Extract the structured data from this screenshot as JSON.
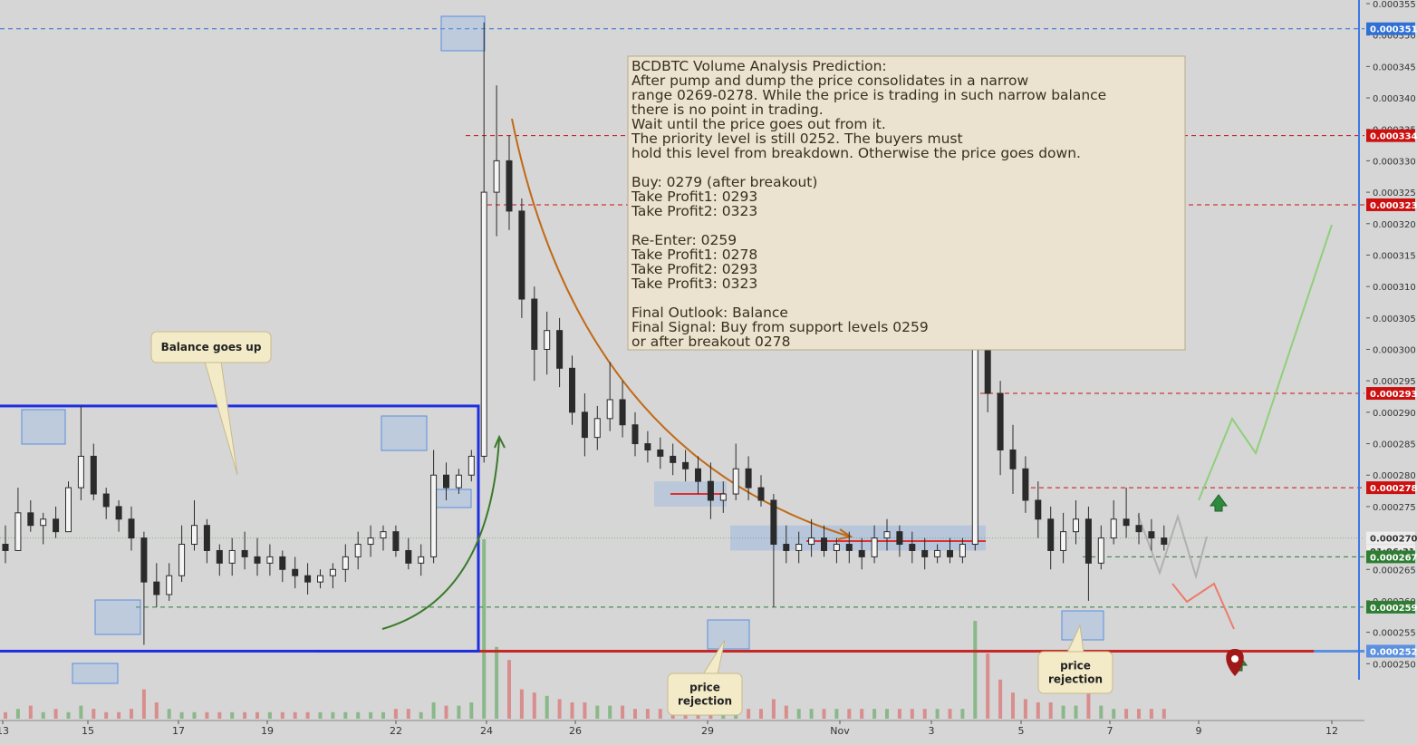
{
  "chart_data": {
    "type": "candlestick",
    "symbol": "BCDBTC",
    "ylim": [
      0.000245,
      0.000355
    ],
    "y_ticks": [
      "0.000250",
      "0.000255",
      "0.000260",
      "0.000265",
      "0.000270",
      "0.000275",
      "0.000280",
      "0.000285",
      "0.000290",
      "0.000295",
      "0.000300",
      "0.000305",
      "0.000310",
      "0.000315",
      "0.000320",
      "0.000325",
      "0.000330",
      "0.000335",
      "0.000340",
      "0.000345",
      "0.000350",
      "0.000355"
    ],
    "x_ticks": [
      "13",
      "15",
      "17",
      "19",
      "22",
      "24",
      "26",
      "29",
      "Nov",
      "3",
      "5",
      "7",
      "9",
      "12"
    ],
    "price_labels": [
      {
        "text": "0.000351",
        "value": 0.000351,
        "color": "#2f6fd6"
      },
      {
        "text": "0.000334",
        "value": 0.000334,
        "color": "#cc1010"
      },
      {
        "text": "0.000323",
        "value": 0.000323,
        "color": "#cc1010"
      },
      {
        "text": "0.000293",
        "value": 0.000293,
        "color": "#cc1010"
      },
      {
        "text": "0.000278",
        "value": 0.000278,
        "color": "#cc1010"
      },
      {
        "text": "0.000270",
        "value": 0.00027,
        "color": "#ffffff"
      },
      {
        "text": "01:06:31",
        "value": 0.0002679,
        "color": "#ffffff"
      },
      {
        "text": "0.000267",
        "value": 0.000267,
        "color": "#2e7d32"
      },
      {
        "text": "0.000259",
        "value": 0.000259,
        "color": "#2e7d32"
      },
      {
        "text": "0.000252",
        "value": 0.000252,
        "color": "#5b8fe0"
      }
    ],
    "levels": [
      {
        "value": 0.000351,
        "color": "#2f6fd6",
        "style": "dashed"
      },
      {
        "value": 0.000334,
        "color": "#cc1010",
        "style": "dashed"
      },
      {
        "value": 0.000323,
        "color": "#cc1010",
        "style": "dashed"
      },
      {
        "value": 0.000293,
        "color": "#cc1010",
        "style": "dashed"
      },
      {
        "value": 0.000278,
        "color": "#cc1010",
        "style": "dashed"
      },
      {
        "value": 0.000267,
        "color": "#2e7d32",
        "style": "dashed"
      },
      {
        "value": 0.000259,
        "color": "#2e7d32",
        "style": "dashed"
      },
      {
        "value": 0.000252,
        "color": "#c62828",
        "style": "solid"
      }
    ],
    "balance_range": [
      0.000252,
      0.000291
    ],
    "candles": [
      [
        0.000269,
        0.000272,
        0.000266,
        0.000268
      ],
      [
        0.000268,
        0.000278,
        0.000268,
        0.000274
      ],
      [
        0.000274,
        0.000276,
        0.000271,
        0.000272
      ],
      [
        0.000272,
        0.000274,
        0.000269,
        0.000273
      ],
      [
        0.000273,
        0.000275,
        0.00027,
        0.000271
      ],
      [
        0.000271,
        0.000279,
        0.000271,
        0.000278
      ],
      [
        0.000278,
        0.000291,
        0.000276,
        0.000283
      ],
      [
        0.000283,
        0.000285,
        0.000276,
        0.000277
      ],
      [
        0.000277,
        0.000278,
        0.000273,
        0.000275
      ],
      [
        0.000275,
        0.000276,
        0.000271,
        0.000273
      ],
      [
        0.000273,
        0.000275,
        0.000268,
        0.00027
      ],
      [
        0.00027,
        0.000271,
        0.000253,
        0.000263
      ],
      [
        0.000263,
        0.000266,
        0.000259,
        0.000261
      ],
      [
        0.000261,
        0.000266,
        0.00026,
        0.000264
      ],
      [
        0.000264,
        0.000272,
        0.000263,
        0.000269
      ],
      [
        0.000269,
        0.000276,
        0.000268,
        0.000272
      ],
      [
        0.000272,
        0.000273,
        0.000266,
        0.000268
      ],
      [
        0.000268,
        0.000269,
        0.000264,
        0.000266
      ],
      [
        0.000266,
        0.00027,
        0.000264,
        0.000268
      ],
      [
        0.000268,
        0.000271,
        0.000265,
        0.000267
      ],
      [
        0.000267,
        0.00027,
        0.000264,
        0.000266
      ],
      [
        0.000266,
        0.000269,
        0.000264,
        0.000267
      ],
      [
        0.000267,
        0.000268,
        0.000263,
        0.000265
      ],
      [
        0.000265,
        0.000267,
        0.000262,
        0.000264
      ],
      [
        0.000264,
        0.000266,
        0.000261,
        0.000263
      ],
      [
        0.000263,
        0.000265,
        0.000262,
        0.000264
      ],
      [
        0.000264,
        0.000266,
        0.000262,
        0.000265
      ],
      [
        0.000265,
        0.000269,
        0.000263,
        0.000267
      ],
      [
        0.000267,
        0.000271,
        0.000265,
        0.000269
      ],
      [
        0.000269,
        0.000272,
        0.000267,
        0.00027
      ],
      [
        0.00027,
        0.000272,
        0.000268,
        0.000271
      ],
      [
        0.000271,
        0.000272,
        0.000267,
        0.000268
      ],
      [
        0.000268,
        0.00027,
        0.000265,
        0.000266
      ],
      [
        0.000266,
        0.000269,
        0.000264,
        0.000267
      ],
      [
        0.000267,
        0.000284,
        0.000266,
        0.00028
      ],
      [
        0.00028,
        0.000282,
        0.000276,
        0.000278
      ],
      [
        0.000278,
        0.000281,
        0.000277,
        0.00028
      ],
      [
        0.00028,
        0.000284,
        0.000279,
        0.000283
      ],
      [
        0.000283,
        0.000352,
        0.000282,
        0.000325
      ],
      [
        0.000325,
        0.000342,
        0.000318,
        0.00033
      ],
      [
        0.00033,
        0.000334,
        0.000319,
        0.000322
      ],
      [
        0.000322,
        0.000324,
        0.000305,
        0.000308
      ],
      [
        0.000308,
        0.00031,
        0.000295,
        0.0003
      ],
      [
        0.0003,
        0.000306,
        0.000296,
        0.000303
      ],
      [
        0.000303,
        0.000305,
        0.000294,
        0.000297
      ],
      [
        0.000297,
        0.000299,
        0.000288,
        0.00029
      ],
      [
        0.00029,
        0.000293,
        0.000283,
        0.000286
      ],
      [
        0.000286,
        0.000291,
        0.000284,
        0.000289
      ],
      [
        0.000289,
        0.000298,
        0.000287,
        0.000292
      ],
      [
        0.000292,
        0.000295,
        0.000286,
        0.000288
      ],
      [
        0.000288,
        0.00029,
        0.000283,
        0.000285
      ],
      [
        0.000285,
        0.000287,
        0.000282,
        0.000284
      ],
      [
        0.000284,
        0.000286,
        0.000281,
        0.000283
      ],
      [
        0.000283,
        0.000285,
        0.00028,
        0.000282
      ],
      [
        0.000282,
        0.000284,
        0.000279,
        0.000281
      ],
      [
        0.000281,
        0.000283,
        0.000277,
        0.000279
      ],
      [
        0.000279,
        0.000282,
        0.000273,
        0.000276
      ],
      [
        0.000276,
        0.000279,
        0.000274,
        0.000277
      ],
      [
        0.000277,
        0.000285,
        0.000276,
        0.000281
      ],
      [
        0.000281,
        0.000283,
        0.000276,
        0.000278
      ],
      [
        0.000278,
        0.00028,
        0.000275,
        0.000276
      ],
      [
        0.000276,
        0.000277,
        0.000259,
        0.000269
      ],
      [
        0.000269,
        0.000272,
        0.000266,
        0.000268
      ],
      [
        0.000268,
        0.000271,
        0.000266,
        0.000269
      ],
      [
        0.000269,
        0.000273,
        0.000267,
        0.00027
      ],
      [
        0.00027,
        0.000272,
        0.000267,
        0.000268
      ],
      [
        0.000268,
        0.00027,
        0.000266,
        0.000269
      ],
      [
        0.000269,
        0.000271,
        0.000266,
        0.000268
      ],
      [
        0.000268,
        0.00027,
        0.000265,
        0.000267
      ],
      [
        0.000267,
        0.000272,
        0.000266,
        0.00027
      ],
      [
        0.00027,
        0.000273,
        0.000268,
        0.000271
      ],
      [
        0.000271,
        0.000272,
        0.000267,
        0.000269
      ],
      [
        0.000269,
        0.000271,
        0.000266,
        0.000268
      ],
      [
        0.000268,
        0.00027,
        0.000265,
        0.000267
      ],
      [
        0.000267,
        0.000269,
        0.000266,
        0.000268
      ],
      [
        0.000268,
        0.00027,
        0.000266,
        0.000267
      ],
      [
        0.000267,
        0.00027,
        0.000266,
        0.000269
      ],
      [
        0.000269,
        0.000312,
        0.000268,
        0.0003
      ],
      [
        0.0003,
        0.000323,
        0.00029,
        0.000293
      ],
      [
        0.000293,
        0.000295,
        0.00028,
        0.000284
      ],
      [
        0.000284,
        0.000288,
        0.000277,
        0.000281
      ],
      [
        0.000281,
        0.000283,
        0.000274,
        0.000276
      ],
      [
        0.000276,
        0.000279,
        0.00027,
        0.000273
      ],
      [
        0.000273,
        0.000275,
        0.000265,
        0.000268
      ],
      [
        0.000268,
        0.000274,
        0.000266,
        0.000271
      ],
      [
        0.000271,
        0.000276,
        0.000269,
        0.000273
      ],
      [
        0.000273,
        0.000275,
        0.00026,
        0.000266
      ],
      [
        0.000266,
        0.000272,
        0.000265,
        0.00027
      ],
      [
        0.00027,
        0.000276,
        0.000269,
        0.000273
      ],
      [
        0.000273,
        0.000278,
        0.00027,
        0.000272
      ],
      [
        0.000272,
        0.000274,
        0.000269,
        0.000271
      ],
      [
        0.000271,
        0.000273,
        0.000268,
        0.00027
      ],
      [
        0.00027,
        0.000272,
        0.000268,
        0.000269
      ]
    ],
    "volume_bars": [
      2,
      3,
      4,
      2,
      3,
      2,
      4,
      3,
      2,
      2,
      3,
      9,
      5,
      3,
      2,
      2,
      2,
      2,
      2,
      2,
      2,
      2,
      2,
      2,
      2,
      2,
      2,
      2,
      2,
      2,
      2,
      3,
      3,
      2,
      5,
      4,
      4,
      5,
      55,
      22,
      18,
      9,
      8,
      7,
      6,
      5,
      5,
      4,
      4,
      4,
      3,
      3,
      3,
      3,
      3,
      3,
      5,
      4,
      3,
      3,
      3,
      6,
      4,
      3,
      3,
      3,
      3,
      3,
      3,
      3,
      3,
      3,
      3,
      3,
      3,
      3,
      3,
      30,
      20,
      12,
      8,
      6,
      5,
      5,
      4,
      4,
      8,
      4,
      3,
      3,
      3,
      3,
      3
    ],
    "annotation_text": [
      "BCDBTC Volume Analysis Prediction:",
      "After pump and dump the price consolidates in a narrow",
      "range 0269-0278. While the price is trading in such narrow balance",
      "there is no point in trading.",
      "Wait until the price goes out from it.",
      "The priority level is still 0252. The buyers must",
      "hold this level from breakdown. Otherwise the price goes down.",
      "",
      "Buy: 0279 (after breakout)",
      "Take Profit1: 0293",
      "Take Profit2: 0323",
      "",
      "Re-Enter: 0259",
      "Take Profit1: 0278",
      "Take Profit2: 0293",
      "Take Profit3: 0323",
      "",
      "Final Outlook: Balance",
      "Final Signal: Buy from support levels 0259",
      "or after breakout 0278"
    ],
    "callouts": [
      "Balance goes up",
      "price\nrejection",
      "price\nrejection"
    ],
    "colors": {
      "bull": "#2b2b2b",
      "bear": "#2b2b2b",
      "background": "#d6d6d6",
      "balance_box": "#1f2fe0",
      "support": "#c62828"
    }
  }
}
